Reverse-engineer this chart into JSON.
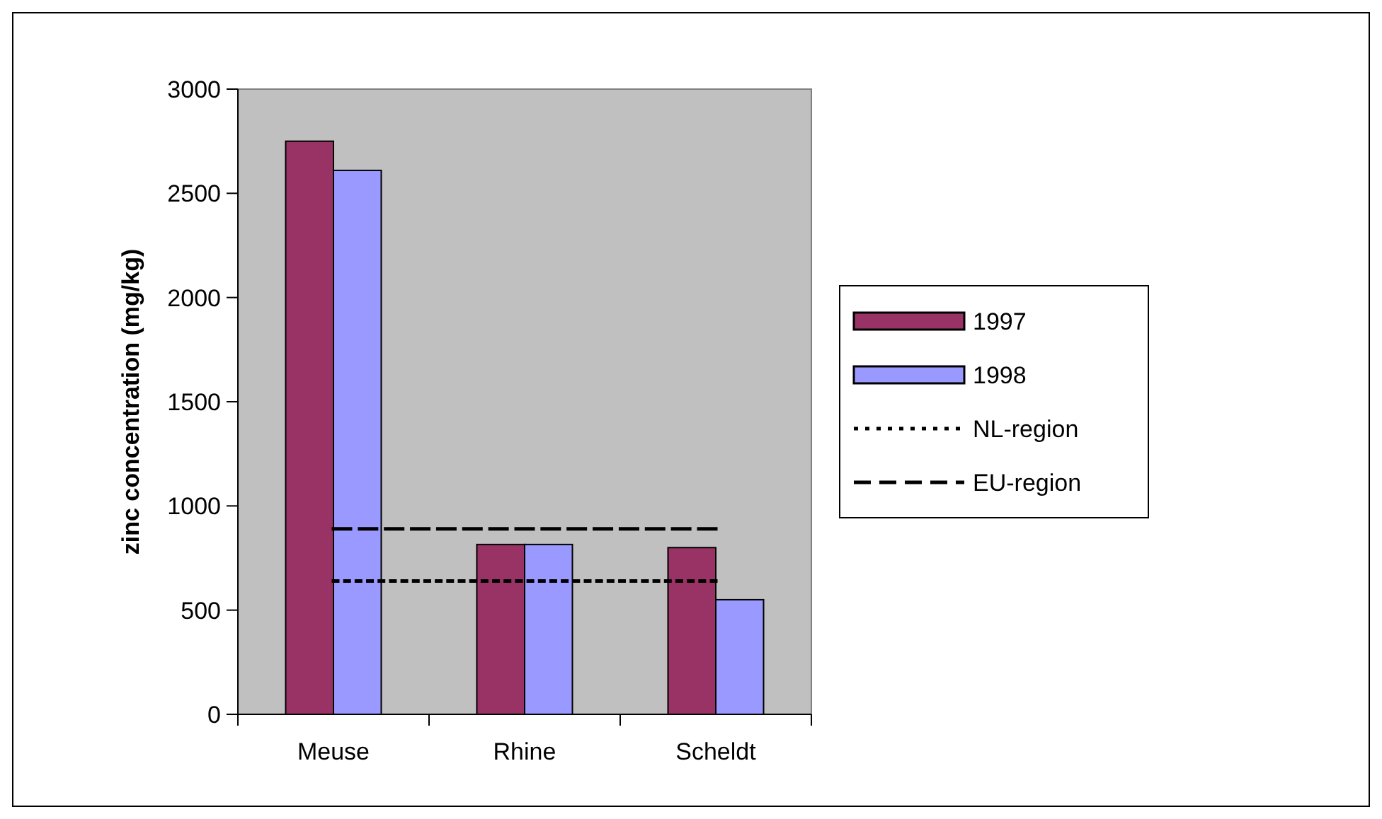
{
  "chart_data": {
    "type": "bar",
    "ylabel": "zinc concentration (mg/kg)",
    "categories": [
      "Meuse",
      "Rhine",
      "Scheldt"
    ],
    "series": [
      {
        "name": "1997",
        "color": "#993366",
        "values": [
          2750,
          815,
          800
        ]
      },
      {
        "name": "1998",
        "color": "#9999ff",
        "values": [
          2610,
          815,
          550
        ]
      },
      {
        "name": "NL-region",
        "type": "line",
        "color": "#000000",
        "line_style": "dotted",
        "values": [
          640,
          640,
          640
        ]
      },
      {
        "name": "EU-region",
        "type": "line",
        "color": "#000000",
        "line_style": "dashed",
        "values": [
          890,
          890,
          890
        ]
      }
    ],
    "ylim": [
      0,
      3000
    ],
    "yticks": [
      0,
      500,
      1000,
      1500,
      2000,
      2500,
      3000
    ],
    "grid": false,
    "legend": "right"
  }
}
